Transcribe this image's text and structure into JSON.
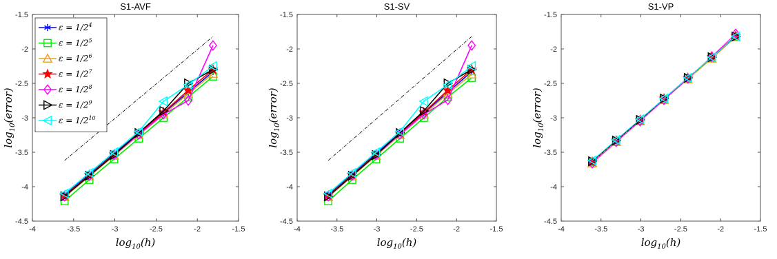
{
  "chart_data": [
    {
      "type": "line",
      "title": "S1-AVF",
      "xlabel": "log10(h)",
      "ylabel": "log10(error)",
      "xlim": [
        -4,
        -1.5
      ],
      "ylim": [
        -4.5,
        -1.5
      ],
      "xticks": [
        "-4",
        "-3.5",
        "-3",
        "-2.5",
        "-2",
        "-1.5"
      ],
      "yticks": [
        "-1.5",
        "-2",
        "-2.5",
        "-3",
        "-3.5",
        "-4",
        "-4.5"
      ],
      "legend": "top-left",
      "reference_line": {
        "x": [
          -3.61,
          -1.81
        ],
        "y": [
          -3.62,
          -1.82
        ]
      },
      "x": [
        -3.61,
        -3.31,
        -3.01,
        -2.71,
        -2.41,
        -2.11,
        -1.81
      ],
      "series": [
        {
          "name": "ε = 1/2^4",
          "color": "#0000ff",
          "marker": "asterisk",
          "values": [
            -4.12,
            -3.82,
            -3.52,
            -3.22,
            -2.93,
            -2.63,
            -2.33
          ]
        },
        {
          "name": "ε = 1/2^5",
          "color": "#00ee00",
          "marker": "square",
          "values": [
            -4.21,
            -3.9,
            -3.6,
            -3.3,
            -3.0,
            -2.7,
            -2.4
          ]
        },
        {
          "name": "ε = 1/2^6",
          "color": "#e8a020",
          "marker": "triangle-up",
          "values": [
            -4.15,
            -3.85,
            -3.55,
            -3.25,
            -2.95,
            -2.65,
            -2.36
          ]
        },
        {
          "name": "ε = 1/2^7",
          "color": "#ff0000",
          "marker": "pentagram",
          "values": [
            -4.13,
            -3.83,
            -3.53,
            -3.23,
            -2.92,
            -2.6,
            -2.3
          ]
        },
        {
          "name": "ε = 1/2^8",
          "color": "#ff00ff",
          "marker": "diamond",
          "values": [
            -4.14,
            -3.84,
            -3.54,
            -3.24,
            -2.95,
            -2.75,
            -1.95
          ]
        },
        {
          "name": "ε = 1/2^9",
          "color": "#000000",
          "marker": "triangle-right",
          "values": [
            -4.14,
            -3.84,
            -3.54,
            -3.22,
            -2.9,
            -2.5,
            -2.3
          ]
        },
        {
          "name": "ε = 1/2^10",
          "color": "#00ffff",
          "marker": "triangle-left",
          "values": [
            -4.1,
            -3.8,
            -3.5,
            -3.2,
            -2.76,
            -2.52,
            -2.25
          ]
        }
      ]
    },
    {
      "type": "line",
      "title": "S1-SV",
      "xlabel": "log10(h)",
      "ylabel": "log10(error)",
      "xlim": [
        -4,
        -1.5
      ],
      "ylim": [
        -4.5,
        -1.5
      ],
      "xticks": [
        "-4",
        "-3.5",
        "-3",
        "-2.5",
        "-2",
        "-1.5"
      ],
      "yticks": [
        "-1.5",
        "-2",
        "-2.5",
        "-3",
        "-3.5",
        "-4",
        "-4.5"
      ],
      "reference_line": {
        "x": [
          -3.61,
          -1.81
        ],
        "y": [
          -3.62,
          -1.82
        ]
      },
      "x": [
        -3.61,
        -3.31,
        -3.01,
        -2.71,
        -2.41,
        -2.11,
        -1.81
      ],
      "series": [
        {
          "color": "#0000ff",
          "marker": "asterisk",
          "values": [
            -4.12,
            -3.82,
            -3.52,
            -3.22,
            -2.93,
            -2.63,
            -2.33
          ]
        },
        {
          "color": "#00ee00",
          "marker": "square",
          "values": [
            -4.21,
            -3.9,
            -3.6,
            -3.3,
            -3.0,
            -2.7,
            -2.42
          ]
        },
        {
          "color": "#e8a020",
          "marker": "triangle-up",
          "values": [
            -4.15,
            -3.85,
            -3.55,
            -3.25,
            -2.95,
            -2.65,
            -2.37
          ]
        },
        {
          "color": "#ff0000",
          "marker": "pentagram",
          "values": [
            -4.13,
            -3.83,
            -3.53,
            -3.23,
            -2.92,
            -2.6,
            -2.3
          ]
        },
        {
          "color": "#ff00ff",
          "marker": "diamond",
          "values": [
            -4.14,
            -3.84,
            -3.54,
            -3.24,
            -2.95,
            -2.74,
            -1.95
          ]
        },
        {
          "color": "#000000",
          "marker": "triangle-right",
          "values": [
            -4.14,
            -3.84,
            -3.54,
            -3.22,
            -2.9,
            -2.5,
            -2.3
          ]
        },
        {
          "color": "#00ffff",
          "marker": "triangle-left",
          "values": [
            -4.1,
            -3.8,
            -3.5,
            -3.2,
            -2.76,
            -2.52,
            -2.25
          ]
        }
      ]
    },
    {
      "type": "line",
      "title": "S1-VP",
      "xlabel": "log10(h)",
      "ylabel": "log10(error)",
      "xlim": [
        -4,
        -1.5
      ],
      "ylim": [
        -4.5,
        -1.5
      ],
      "xticks": [
        "-4",
        "-3.5",
        "-3",
        "-2.5",
        "-2",
        "-1.5"
      ],
      "yticks": [
        "-1.5",
        "-2",
        "-2.5",
        "-3",
        "-3.5",
        "-4",
        "-4.5"
      ],
      "reference_line": {
        "x": [
          -3.61,
          -1.81
        ],
        "y": [
          -3.63,
          -1.83
        ]
      },
      "x": [
        -3.61,
        -3.31,
        -3.01,
        -2.71,
        -2.41,
        -2.11,
        -1.81
      ],
      "series": [
        {
          "color": "#0000ff",
          "marker": "asterisk",
          "values": [
            -3.63,
            -3.33,
            -3.03,
            -2.72,
            -2.42,
            -2.12,
            -1.81
          ]
        },
        {
          "color": "#00ee00",
          "marker": "square",
          "values": [
            -3.64,
            -3.34,
            -3.04,
            -2.73,
            -2.43,
            -2.13,
            -1.82
          ]
        },
        {
          "color": "#e8a020",
          "marker": "triangle-up",
          "values": [
            -3.66,
            -3.35,
            -3.05,
            -2.74,
            -2.44,
            -2.14,
            -1.83
          ]
        },
        {
          "color": "#ff0000",
          "marker": "pentagram",
          "values": [
            -3.64,
            -3.33,
            -3.03,
            -2.72,
            -2.42,
            -2.12,
            -1.81
          ]
        },
        {
          "color": "#ff00ff",
          "marker": "diamond",
          "values": [
            -3.66,
            -3.35,
            -3.05,
            -2.74,
            -2.43,
            -2.11,
            -1.78
          ]
        },
        {
          "color": "#000000",
          "marker": "triangle-right",
          "values": [
            -3.63,
            -3.33,
            -3.03,
            -2.72,
            -2.42,
            -2.12,
            -1.82
          ]
        },
        {
          "color": "#00ffff",
          "marker": "triangle-left",
          "values": [
            -3.62,
            -3.32,
            -3.02,
            -2.72,
            -2.42,
            -2.12,
            -1.82
          ]
        }
      ]
    }
  ]
}
